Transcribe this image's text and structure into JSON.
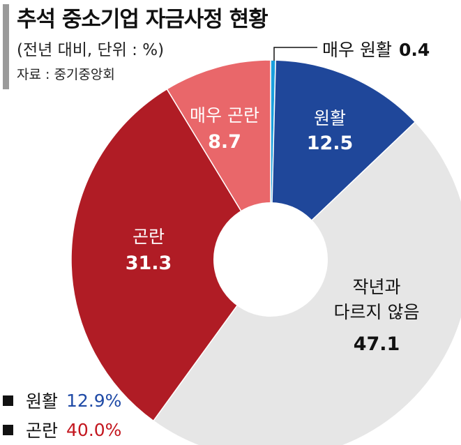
{
  "header": {
    "title": "추석 중소기업 자금사정 현황",
    "subtitle": "(전년 대비, 단위 : %)",
    "source": "자료 : 중기중앙회"
  },
  "chart_data": {
    "type": "pie",
    "title": "추석 중소기업 자금사정 현황",
    "unit": "%",
    "slices": [
      {
        "label": "매우 원활",
        "value": 0.4,
        "color": "#1aa0dd"
      },
      {
        "label": "원활",
        "value": 12.5,
        "color": "#1f479a"
      },
      {
        "label": "작년과 다르지 않음",
        "value": 47.1,
        "color": "#e6e6e6"
      },
      {
        "label": "곤란",
        "value": 31.3,
        "color": "#b01c25"
      },
      {
        "label": "매우 곤란",
        "value": 8.7,
        "color": "#e9676a"
      }
    ]
  },
  "legend": [
    {
      "label": "원활",
      "value": "12.9%",
      "value_color": "#1f4aa6",
      "marker_color": "#111111"
    },
    {
      "label": "곤란",
      "value": "40.0%",
      "value_color": "#c3161e",
      "marker_color": "#111111"
    }
  ],
  "labels": {
    "slice0": {
      "name": "매우 원활",
      "value": "0.4"
    },
    "slice1": {
      "name": "원활",
      "value": "12.5"
    },
    "slice2": {
      "line1": "작년과",
      "line2": "다르지 않음",
      "value": "47.1"
    },
    "slice3": {
      "name": "곤란",
      "value": "31.3"
    },
    "slice4": {
      "name": "매우 곤란",
      "value": "8.7"
    }
  }
}
